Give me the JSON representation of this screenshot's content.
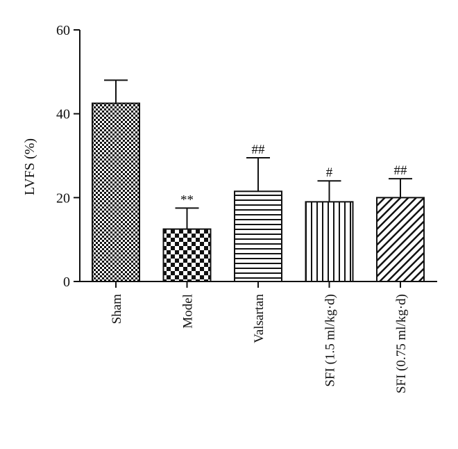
{
  "chart_data": {
    "type": "bar",
    "title": "",
    "xlabel": "",
    "ylabel": "LVFS (%)",
    "ylim": [
      0,
      60
    ],
    "yticks": [
      0,
      20,
      40,
      60
    ],
    "grid": false,
    "legend": "none",
    "categories": [
      "Sham",
      "Model",
      "Valsartan",
      "SFI (1.5 ml/kg·d)",
      "SFI (0.75 ml/kg·d)"
    ],
    "values": [
      42.5,
      12.5,
      21.5,
      19,
      20
    ],
    "error_plus": [
      5.5,
      5,
      8,
      5,
      4.5
    ],
    "annotations": [
      "",
      "**",
      "##",
      "#",
      "##"
    ],
    "patterns": [
      "fine-checker",
      "coarse-checker",
      "horizontal-lines",
      "vertical-lines",
      "diagonal-hatch"
    ],
    "colors": {
      "ink": "#111111",
      "background": "#ffffff"
    }
  }
}
